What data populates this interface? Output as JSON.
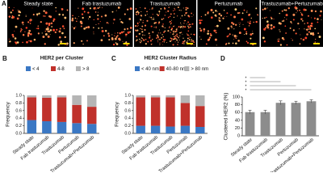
{
  "panel_a": {
    "label": "A",
    "images": [
      "Steady state",
      "Fab trastuzumab",
      "Trastuzumab",
      "Pertuzumab",
      "Trastuzumab+Pertuzumab"
    ]
  },
  "chart_data": [
    {
      "panel": "B",
      "type": "stacked_bar",
      "title": "HER2 per Cluster",
      "ylabel": "Frequency",
      "categories": [
        "Steady state",
        "Fab trastuzumab",
        "Trastuzumab",
        "Pertuzumab",
        "Trastuzumab+Pertuzumab"
      ],
      "series": [
        {
          "name": "< 4",
          "color": "#3b78c4",
          "values": [
            0.35,
            0.32,
            0.3,
            0.27,
            0.25
          ]
        },
        {
          "name": "4-8",
          "color": "#c0312b",
          "values": [
            0.6,
            0.62,
            0.65,
            0.48,
            0.45
          ]
        },
        {
          "name": "> 8",
          "color": "#b5b5b5",
          "values": [
            0.05,
            0.06,
            0.05,
            0.25,
            0.3
          ]
        }
      ],
      "ylim": [
        0,
        1
      ],
      "yticks": [
        {
          "value": 0,
          "label": "0.0"
        },
        0.2,
        0.4,
        0.6,
        0.8,
        {
          "value": 1,
          "label": "1.0"
        }
      ]
    },
    {
      "panel": "C",
      "type": "stacked_bar",
      "title": "HER2 Cluster Radius",
      "ylabel": "Frequency",
      "categories": [
        "Steady state",
        "Fab trastuzumab",
        "Trastuzumab",
        "Pertuzumab",
        "Trastuzumab+Pertuzumab"
      ],
      "series": [
        {
          "name": "< 40 nm",
          "color": "#3b78c4",
          "values": [
            0.2,
            0.2,
            0.18,
            0.2,
            0.17
          ]
        },
        {
          "name": "40-80 nm",
          "color": "#c0312b",
          "values": [
            0.75,
            0.75,
            0.77,
            0.6,
            0.55
          ]
        },
        {
          "name": "> 80 nm",
          "color": "#b5b5b5",
          "values": [
            0.05,
            0.05,
            0.05,
            0.2,
            0.28
          ]
        }
      ],
      "ylim": [
        0,
        1
      ],
      "yticks": [
        {
          "value": 0,
          "label": "0.0"
        },
        0.2,
        0.4,
        0.6,
        0.8,
        {
          "value": 1,
          "label": "1.0"
        }
      ]
    },
    {
      "panel": "D",
      "type": "bar",
      "ylabel": "Clustered HER2 (%)",
      "categories": [
        "Steady state",
        "Fab trastuzumab",
        "Trastuzumab",
        "Pertuzumab",
        "Trastuzumab+Pertuzumab"
      ],
      "values": [
        61,
        61,
        85,
        85,
        89
      ],
      "errors": [
        5,
        5,
        5,
        4,
        4
      ],
      "color": "#8c8c8c",
      "ylim": [
        0,
        100
      ],
      "yticks": [
        0,
        20,
        40,
        60,
        80,
        100
      ],
      "annotations": [
        "*",
        "*",
        "*",
        "*"
      ]
    }
  ]
}
